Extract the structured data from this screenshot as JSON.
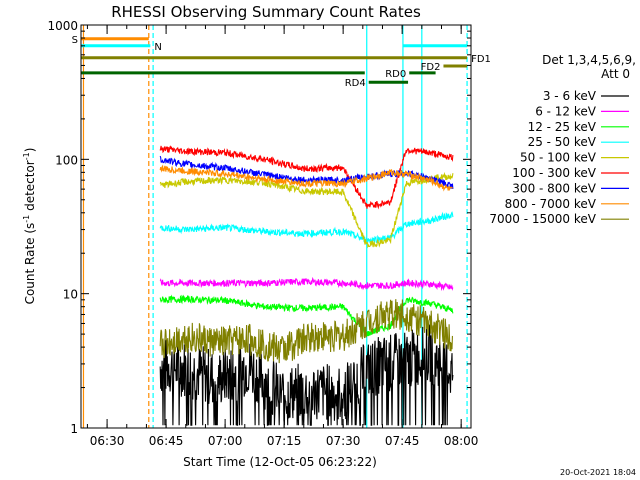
{
  "chart_data": {
    "type": "line",
    "title": "RHESSI Observing Summary Count Rates",
    "xlabel": "Start Time (12-Oct-05 06:23:22)",
    "ylabel_prefix": "Count Rate (s",
    "ylabel_sup": "-1",
    "ylabel_suffix": " detector",
    "ylabel_close": ")",
    "yscale": "log",
    "ylim": [
      1,
      1000
    ],
    "xlim_min": [
      23.37,
      82.5
    ],
    "y_ticks": [
      {
        "v": 1,
        "label": "1"
      },
      {
        "v": 10,
        "label": "10"
      },
      {
        "v": 100,
        "label": "100"
      },
      {
        "v": 1000,
        "label": "1000"
      }
    ],
    "x_ticks": [
      {
        "m": 30,
        "label": "06:30"
      },
      {
        "m": 45,
        "label": "06:45"
      },
      {
        "m": 60,
        "label": "07:00"
      },
      {
        "m": 75,
        "label": "07:15"
      },
      {
        "m": 90,
        "label": "07:30"
      },
      {
        "m": 105,
        "label": "07:45"
      },
      {
        "m": 120,
        "label": "08:00"
      }
    ],
    "legend_title": [
      "Det 1,3,4,5,6,9,",
      "Att 0"
    ],
    "series": [
      {
        "name": "3 - 6 keV",
        "color": "#000000",
        "points": [
          [
            43.5,
            2.9
          ],
          [
            50,
            2.8
          ],
          [
            58,
            2.3
          ],
          [
            66,
            2.9
          ],
          [
            74,
            1.8
          ],
          [
            82,
            1.9
          ],
          [
            90,
            1.8
          ],
          [
            96,
            2.7
          ],
          [
            100,
            3.0
          ],
          [
            106,
            3.2
          ],
          [
            112,
            3.6
          ],
          [
            118,
            2.6
          ]
        ]
      },
      {
        "name": "6 - 12 keV",
        "color": "#ff00ff",
        "points": [
          [
            43.5,
            12
          ],
          [
            50,
            12
          ],
          [
            60,
            12
          ],
          [
            70,
            12
          ],
          [
            80,
            12.3
          ],
          [
            90,
            12
          ],
          [
            96,
            11.5
          ],
          [
            102,
            11.5
          ],
          [
            106,
            12
          ],
          [
            112,
            11.8
          ],
          [
            118,
            11
          ]
        ]
      },
      {
        "name": "12 - 25 keV",
        "color": "#00ff00",
        "points": [
          [
            43.5,
            9
          ],
          [
            50,
            9.1
          ],
          [
            60,
            8.9
          ],
          [
            70,
            8
          ],
          [
            80,
            7.8
          ],
          [
            90,
            8
          ],
          [
            96,
            5
          ],
          [
            102,
            5.8
          ],
          [
            106,
            9
          ],
          [
            112,
            8.5
          ],
          [
            118,
            7.5
          ]
        ]
      },
      {
        "name": "25 - 50 keV",
        "color": "#00ffff",
        "points": [
          [
            43.5,
            31
          ],
          [
            50,
            30
          ],
          [
            60,
            31
          ],
          [
            70,
            29
          ],
          [
            80,
            28
          ],
          [
            90,
            29
          ],
          [
            96,
            25
          ],
          [
            102,
            26
          ],
          [
            106,
            33
          ],
          [
            112,
            35
          ],
          [
            118,
            39
          ]
        ]
      },
      {
        "name": "50 - 100 keV",
        "color": "#c8c800",
        "points": [
          [
            43.5,
            64
          ],
          [
            50,
            68
          ],
          [
            60,
            70
          ],
          [
            70,
            67
          ],
          [
            80,
            58
          ],
          [
            90,
            57
          ],
          [
            96,
            23
          ],
          [
            102,
            25
          ],
          [
            106,
            66
          ],
          [
            112,
            72
          ],
          [
            118,
            75
          ]
        ]
      },
      {
        "name": "100 - 300 keV",
        "color": "#ff0000",
        "points": [
          [
            43.5,
            120
          ],
          [
            50,
            115
          ],
          [
            60,
            112
          ],
          [
            70,
            100
          ],
          [
            80,
            85
          ],
          [
            90,
            87
          ],
          [
            96,
            45
          ],
          [
            102,
            48
          ],
          [
            106,
            118
          ],
          [
            112,
            112
          ],
          [
            118,
            103
          ]
        ]
      },
      {
        "name": "300 - 800 keV",
        "color": "#0000ff",
        "points": [
          [
            43.5,
            100
          ],
          [
            50,
            92
          ],
          [
            60,
            86
          ],
          [
            70,
            77
          ],
          [
            80,
            70
          ],
          [
            90,
            70
          ],
          [
            96,
            74
          ],
          [
            102,
            78
          ],
          [
            106,
            79
          ],
          [
            112,
            72
          ],
          [
            118,
            63
          ]
        ]
      },
      {
        "name": "800 - 7000 keV",
        "color": "#ff8c00",
        "points": [
          [
            43.5,
            85
          ],
          [
            50,
            82
          ],
          [
            60,
            78
          ],
          [
            70,
            71
          ],
          [
            80,
            66
          ],
          [
            90,
            66
          ],
          [
            96,
            72
          ],
          [
            102,
            80
          ],
          [
            106,
            78
          ],
          [
            112,
            70
          ],
          [
            118,
            58
          ]
        ]
      },
      {
        "name": "7000 - 15000 keV",
        "color": "#808000",
        "points": [
          [
            43.5,
            4.2
          ],
          [
            50,
            4.8
          ],
          [
            58,
            4.3
          ],
          [
            66,
            4.6
          ],
          [
            74,
            3.8
          ],
          [
            82,
            4.8
          ],
          [
            90,
            4.8
          ],
          [
            96,
            6.1
          ],
          [
            100,
            7.0
          ],
          [
            106,
            7.0
          ],
          [
            112,
            5.8
          ],
          [
            118,
            4.8
          ]
        ]
      }
    ],
    "flags": [
      {
        "label": "S",
        "color": "#ff8c00",
        "start": 23.37,
        "end": 40.6,
        "y": 790,
        "label_side": "left"
      },
      {
        "label": "N",
        "color": "#00ffff",
        "start": 23.37,
        "end": 41.0,
        "y": 700,
        "label_side": "right"
      },
      {
        "label": "N",
        "color": "#00ffff",
        "start": 105.2,
        "end": 121.5,
        "y": 700,
        "label_side": "none"
      },
      {
        "label": "FD1",
        "color": "#808000",
        "start": 23.37,
        "end": 121.5,
        "y": 570,
        "label_side": "right"
      },
      {
        "label": "FD2",
        "color": "#808000",
        "start": 115.5,
        "end": 121.5,
        "y": 495,
        "label_side": "left"
      },
      {
        "label": "RD0",
        "color": "#006400",
        "start": 23.37,
        "end": 95.5,
        "y": 440,
        "label_side": "none"
      },
      {
        "label": "RD0",
        "color": "#006400",
        "start": 106.8,
        "end": 113.5,
        "y": 440,
        "label_side": "left"
      },
      {
        "label": "RD4",
        "color": "#006400",
        "start": 96.5,
        "end": 106.5,
        "y": 375,
        "label_side": "left"
      }
    ],
    "vlines": [
      {
        "m": 24.0,
        "color": "#ff8c00",
        "style": "solid"
      },
      {
        "m": 40.6,
        "color": "#ff8c00",
        "style": "dashed"
      },
      {
        "m": 41.7,
        "color": "#00ffff",
        "style": "dashed"
      },
      {
        "m": 96.0,
        "color": "#00ffff",
        "style": "solid"
      },
      {
        "m": 105.2,
        "color": "#00ffff",
        "style": "solid"
      },
      {
        "m": 110.0,
        "color": "#00ffff",
        "style": "solid"
      },
      {
        "m": 121.5,
        "color": "#00ffff",
        "style": "dashed"
      }
    ],
    "footer_date": "20-Oct-2021 18:04"
  }
}
